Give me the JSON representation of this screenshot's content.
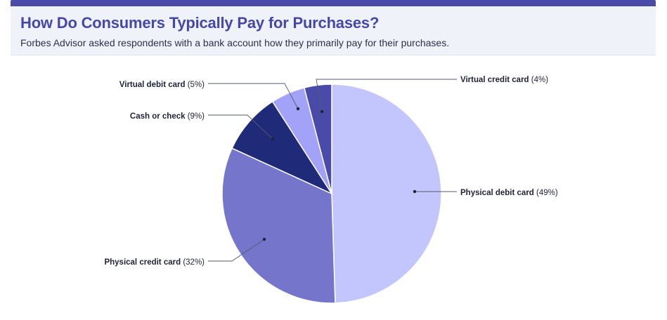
{
  "header": {
    "title": "How Do Consumers Typically Pay for Purchases?",
    "subtitle": "Forbes Advisor asked respondents with a bank account how they primarily pay for their purchases."
  },
  "chart_data": {
    "type": "pie",
    "slices": [
      {
        "label": "Physical debit card",
        "value_text": "(49%)",
        "value": 49,
        "color": "#c3c6fd"
      },
      {
        "label": "Physical credit card",
        "value_text": "(32%)",
        "value": 32,
        "color": "#7575cc"
      },
      {
        "label": "Cash or check",
        "value_text": "(9%)",
        "value": 9,
        "color": "#1f2a78"
      },
      {
        "label": "Virtual debit card",
        "value_text": "(5%)",
        "value": 5,
        "color": "#a2a2f8"
      },
      {
        "label": "Virtual credit card",
        "value_text": "(4%)",
        "value": 4,
        "color": "#4a4aa8"
      }
    ]
  }
}
